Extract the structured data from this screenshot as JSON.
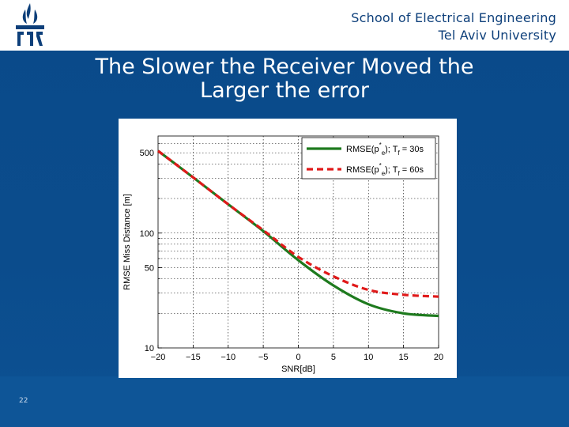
{
  "header": {
    "line1": "School of Electrical Engineering",
    "line2": "Tel Aviv University"
  },
  "slide": {
    "title_line1": "The Slower the Receiver Moved the",
    "title_line2": "Larger the error",
    "page_number": "22"
  },
  "chart_data": {
    "type": "line",
    "xlabel": "SNR[dB]",
    "ylabel": "RMSE Miss Distance [m]",
    "xlim": [
      -20,
      20
    ],
    "ylim": [
      10,
      700
    ],
    "yscale": "log",
    "grid": true,
    "legend_position": "top-right",
    "x_ticks": [
      "−20",
      "−15",
      "−10",
      "−5",
      "0",
      "5",
      "10",
      "15",
      "20"
    ],
    "x_tick_values": [
      -20,
      -15,
      -10,
      -5,
      0,
      5,
      10,
      15,
      20
    ],
    "y_ticks": [
      "10",
      "50",
      "100",
      "500"
    ],
    "y_tick_values": [
      10,
      50,
      100,
      500
    ],
    "x": [
      -20,
      -15,
      -10,
      -5,
      0,
      5,
      10,
      15,
      20
    ],
    "series": [
      {
        "legend_main": "RMSE(p",
        "legend_sup": "*",
        "legend_sub": "e",
        "legend_mid": "); T",
        "legend_sub2": "f",
        "legend_tail": " = 30s",
        "color": "#1e7a1e",
        "style": "solid",
        "values": [
          520,
          305,
          178,
          104,
          58,
          35,
          24,
          20,
          19
        ]
      },
      {
        "legend_main": "RMSE(p",
        "legend_sup": "*",
        "legend_sub": "e",
        "legend_mid": "); T",
        "legend_sub2": "f",
        "legend_tail": " = 60s",
        "color": "#e01a1a",
        "style": "dashed",
        "values": [
          520,
          305,
          178,
          106,
          62,
          42,
          32,
          29,
          28
        ]
      }
    ]
  },
  "colors": {
    "slide_background": "#0b4c8c",
    "header_background": "#ffffff",
    "header_text": "#0d3f7a",
    "title_text": "#ffffff"
  }
}
